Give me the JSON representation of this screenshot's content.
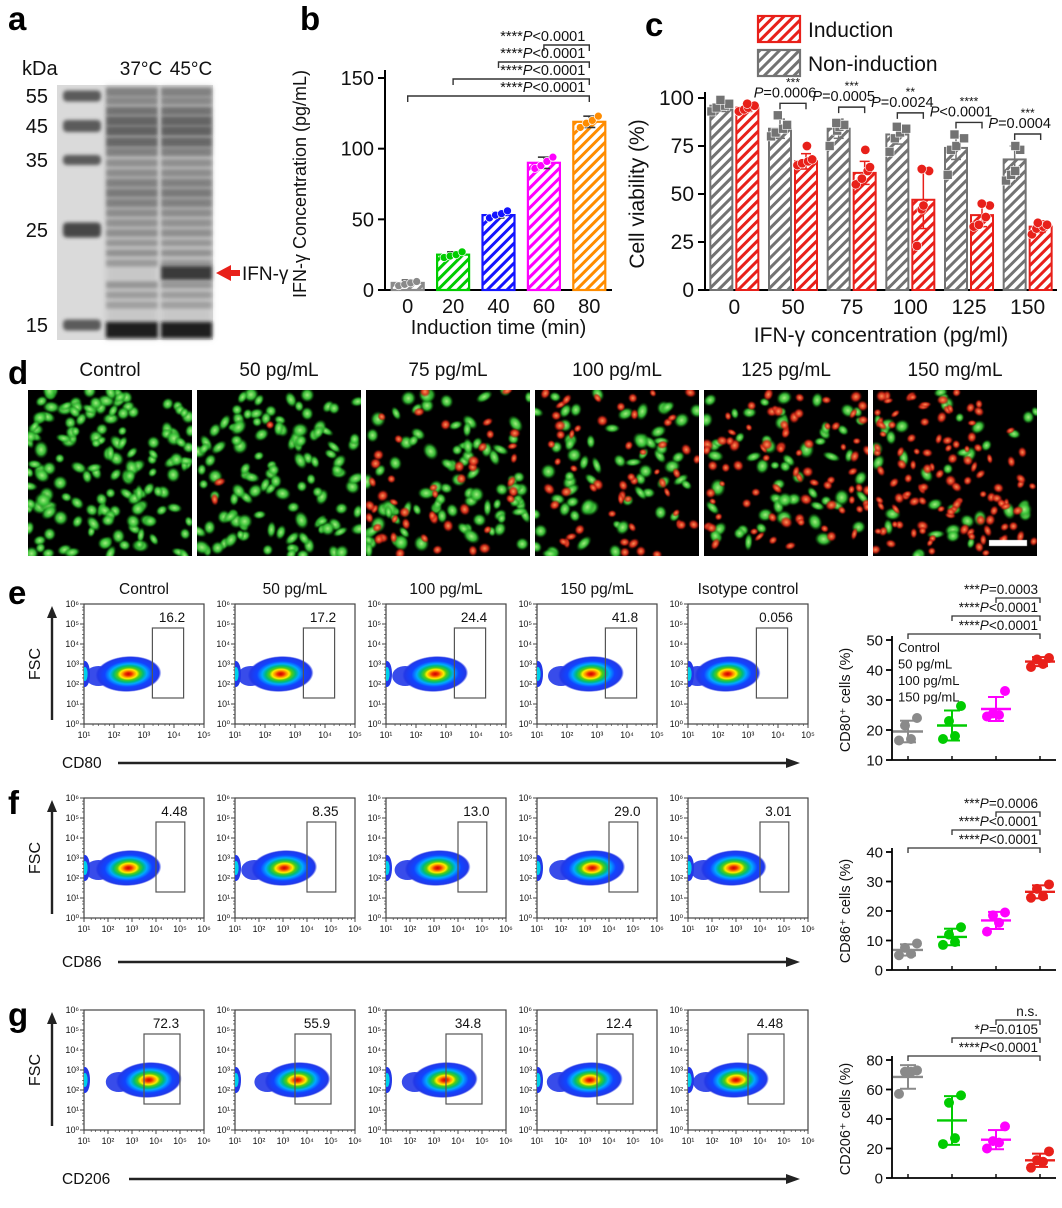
{
  "panel_a": {
    "label": "a",
    "unit_label": "kDa",
    "lane_labels": [
      "37°C",
      "45°C"
    ],
    "ladder_marks": [
      "55",
      "45",
      "35",
      "25",
      "15"
    ],
    "band_annotation": "IFN-γ",
    "arrow_color": "#e8201a"
  },
  "panel_b": {
    "label": "b"
  },
  "panel_c": {
    "label": "c",
    "legend": [
      {
        "label": "Induction",
        "color": "#e8201a"
      },
      {
        "label": "Non-induction",
        "color": "#737373"
      }
    ]
  },
  "panel_d": {
    "label": "d",
    "scalebar_tile": 5,
    "images": [
      {
        "title": "Control",
        "green_cells": 150,
        "red_cells": 0
      },
      {
        "title": "50 pg/mL",
        "green_cells": 115,
        "red_cells": 3
      },
      {
        "title": "75 pg/mL",
        "green_cells": 90,
        "red_cells": 48
      },
      {
        "title": "100 pg/mL",
        "green_cells": 62,
        "red_cells": 55
      },
      {
        "title": "125 pg/mL",
        "green_cells": 58,
        "red_cells": 78
      },
      {
        "title": "150 mg/mL",
        "green_cells": 38,
        "red_cells": 112
      }
    ]
  },
  "panel_e": {
    "label": "e",
    "fsc_label": "FSC",
    "marker": "CD80",
    "titles": [
      "Control",
      "50 pg/mL",
      "100 pg/mL",
      "150 pg/mL",
      "Isotype control"
    ],
    "gates": [
      "16.2",
      "17.2",
      "24.4",
      "41.8",
      "0.056"
    ],
    "xticks": [
      "10¹",
      "10²",
      "10³",
      "10⁴",
      "10⁵"
    ],
    "yticks": [
      "10⁰",
      "10¹",
      "10²",
      "10³",
      "10⁴",
      "10⁵",
      "10⁶"
    ]
  },
  "panel_f": {
    "label": "f",
    "fsc_label": "FSC",
    "marker": "CD86",
    "titles": [],
    "gates": [
      "4.48",
      "8.35",
      "13.0",
      "29.0",
      "3.01"
    ],
    "xticks": [
      "10¹",
      "10²",
      "10³",
      "10⁴",
      "10⁵",
      "10⁶"
    ],
    "yticks": [
      "10⁰",
      "10¹",
      "10²",
      "10³",
      "10⁴",
      "10⁵",
      "10⁶"
    ]
  },
  "panel_g": {
    "label": "g",
    "fsc_label": "FSC",
    "marker": "CD206",
    "titles": [],
    "gates": [
      "72.3",
      "55.9",
      "34.8",
      "12.4",
      "4.48"
    ],
    "xticks": [
      "10¹",
      "10²",
      "10³",
      "10⁴",
      "10⁵",
      "10⁶"
    ],
    "yticks": [
      "10⁰",
      "10¹",
      "10²",
      "10³",
      "10⁴",
      "10⁵",
      "10⁶"
    ]
  },
  "chart_data": [
    {
      "id": "b",
      "type": "bar",
      "xlabel": "Induction time (min)",
      "ylabel": "IFN-γ Concentration (pg/mL)",
      "ylim": [
        0,
        150
      ],
      "yticks": [
        0,
        50,
        100,
        150
      ],
      "categories": [
        "0",
        "20",
        "40",
        "60",
        "80"
      ],
      "values": [
        5,
        25,
        53,
        90,
        119
      ],
      "errors": [
        2,
        2,
        2,
        4,
        4
      ],
      "points": [
        [
          3,
          4,
          5,
          6
        ],
        [
          23,
          24,
          25,
          27
        ],
        [
          51,
          53,
          54,
          56
        ],
        [
          86,
          88,
          91,
          94
        ],
        [
          115,
          118,
          120,
          123
        ]
      ],
      "bar_colors": [
        "#8a8a8a",
        "#00cc00",
        "#1414ff",
        "#ff00ff",
        "#ff8c00"
      ],
      "significance": [
        {
          "from": 0,
          "to": 4,
          "label": "****P<0.0001"
        },
        {
          "from": 1,
          "to": 4,
          "label": "****P<0.0001"
        },
        {
          "from": 2,
          "to": 4,
          "label": "****P<0.0001"
        },
        {
          "from": 3,
          "to": 4,
          "label": "****P<0.0001"
        }
      ]
    },
    {
      "id": "c",
      "type": "grouped_bar",
      "xlabel": "IFN-γ concentration (pg/ml)",
      "ylabel": "Cell viability (%)",
      "ylim": [
        0,
        100
      ],
      "yticks": [
        0,
        25,
        50,
        75,
        100
      ],
      "categories": [
        "0",
        "50",
        "75",
        "100",
        "125",
        "150"
      ],
      "series": [
        {
          "name": "Non-induction",
          "color": "#737373",
          "marker": "square",
          "values": [
            96,
            84,
            84,
            81,
            74,
            68
          ],
          "errors": [
            3,
            5,
            5,
            5,
            6,
            7
          ],
          "points": [
            [
              93,
              95,
              96,
              97,
              99
            ],
            [
              80,
              82,
              84,
              86,
              91
            ],
            [
              75,
              83,
              85,
              86,
              87
            ],
            [
              72,
              79,
              82,
              84,
              85
            ],
            [
              60,
              73,
              75,
              79,
              81
            ],
            [
              57,
              60,
              62,
              73,
              75
            ]
          ]
        },
        {
          "name": "Induction",
          "color": "#e8201a",
          "marker": "circle",
          "values": [
            95,
            67,
            61,
            47,
            39,
            33
          ],
          "errors": [
            2,
            4,
            6,
            15,
            6,
            3
          ],
          "points": [
            [
              93,
              94,
              95,
              96,
              97
            ],
            [
              65,
              66,
              67,
              68,
              75
            ],
            [
              55,
              58,
              62,
              64,
              73
            ],
            [
              23,
              42,
              44,
              62,
              63
            ],
            [
              33,
              34,
              38,
              44,
              45
            ],
            [
              29,
              32,
              33,
              34,
              35
            ]
          ]
        }
      ],
      "significance": [
        {
          "cat": 1,
          "stars": "***",
          "label": "P=0.0006"
        },
        {
          "cat": 2,
          "stars": "***",
          "label": "P=0.0005"
        },
        {
          "cat": 3,
          "stars": "**",
          "label": "P=0.0024"
        },
        {
          "cat": 4,
          "stars": "****",
          "label": "P<0.0001"
        },
        {
          "cat": 5,
          "stars": "***",
          "label": "P=0.0004"
        }
      ]
    },
    {
      "id": "e_scatter",
      "type": "scatter",
      "ylabel": "CD80⁺ cells (%)",
      "ylim": [
        10,
        50
      ],
      "yticks": [
        10,
        20,
        30,
        40,
        50
      ],
      "legend": true,
      "groups": [
        {
          "name": "Control",
          "color": "#8a8a8a",
          "points": [
            16.5,
            17,
            21.5,
            24
          ],
          "mean": 19.5,
          "sd": 3.6
        },
        {
          "name": "50 pg/mL",
          "color": "#00cc00",
          "points": [
            17,
            18,
            23,
            28
          ],
          "mean": 21.5,
          "sd": 5.0
        },
        {
          "name": "100 pg/mL",
          "color": "#ff00ff",
          "points": [
            24.5,
            25,
            25.5,
            33
          ],
          "mean": 27.0,
          "sd": 4.0
        },
        {
          "name": "150 pg/mL",
          "color": "#e8201a",
          "points": [
            41,
            42,
            43.5,
            44
          ],
          "mean": 42.8,
          "sd": 1.5
        }
      ],
      "significance": [
        {
          "from": 0,
          "to": 3,
          "label": "****P<0.0001"
        },
        {
          "from": 1,
          "to": 3,
          "label": "****P<0.0001"
        },
        {
          "from": 2,
          "to": 3,
          "label": "***P=0.0003"
        }
      ]
    },
    {
      "id": "f_scatter",
      "type": "scatter",
      "ylabel": "CD86⁺ cells (%)",
      "ylim": [
        0,
        40
      ],
      "yticks": [
        0,
        10,
        20,
        30,
        40
      ],
      "legend": false,
      "groups": [
        {
          "name": "Control",
          "color": "#8a8a8a",
          "points": [
            5,
            5.5,
            7.5,
            9
          ],
          "mean": 6.8,
          "sd": 1.9
        },
        {
          "name": "50 pg/mL",
          "color": "#00cc00",
          "points": [
            8.5,
            9.5,
            12,
            14.5
          ],
          "mean": 11.2,
          "sd": 2.8
        },
        {
          "name": "100 pg/mL",
          "color": "#ff00ff",
          "points": [
            13,
            16,
            18.5,
            19.5
          ],
          "mean": 16.8,
          "sd": 2.9
        },
        {
          "name": "150 pg/mL",
          "color": "#e8201a",
          "points": [
            24.5,
            25,
            27.5,
            29
          ],
          "mean": 26.5,
          "sd": 2.2
        }
      ],
      "significance": [
        {
          "from": 0,
          "to": 3,
          "label": "****P<0.0001"
        },
        {
          "from": 1,
          "to": 3,
          "label": "****P<0.0001"
        },
        {
          "from": 2,
          "to": 3,
          "label": "***P=0.0006"
        }
      ]
    },
    {
      "id": "g_scatter",
      "type": "scatter",
      "ylabel": "CD206⁺ cells (%)",
      "ylim": [
        0,
        80
      ],
      "yticks": [
        0,
        20,
        40,
        60,
        80
      ],
      "legend": false,
      "groups": [
        {
          "name": "Control",
          "color": "#8a8a8a",
          "points": [
            57,
            72,
            72,
            73
          ],
          "mean": 68.5,
          "sd": 8.0
        },
        {
          "name": "50 pg/mL",
          "color": "#00cc00",
          "points": [
            23,
            27,
            51,
            56
          ],
          "mean": 39.0,
          "sd": 16.5
        },
        {
          "name": "100 pg/mL",
          "color": "#ff00ff",
          "points": [
            20,
            24,
            25,
            35
          ],
          "mean": 26.0,
          "sd": 6.5
        },
        {
          "name": "150 pg/mL",
          "color": "#e8201a",
          "points": [
            7,
            11,
            12,
            18
          ],
          "mean": 12.0,
          "sd": 4.5
        }
      ],
      "significance": [
        {
          "from": 0,
          "to": 3,
          "label": "****P<0.0001"
        },
        {
          "from": 1,
          "to": 3,
          "label": "*P=0.0105"
        },
        {
          "from": 2,
          "to": 3,
          "label": "n.s."
        }
      ]
    }
  ]
}
